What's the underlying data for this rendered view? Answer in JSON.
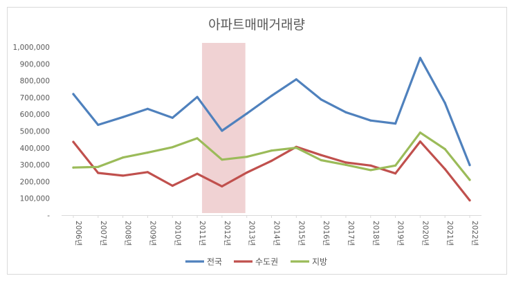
{
  "chart_data": {
    "type": "line",
    "title": "아파트매매거래량",
    "xlabel": "",
    "ylabel": "",
    "categories": [
      "2006년",
      "2007년",
      "2008년",
      "2009년",
      "2010년",
      "2011년",
      "2012년",
      "2013년",
      "2014년",
      "2015년",
      "2016년",
      "2017년",
      "2018년",
      "2019년",
      "2020년",
      "2021년",
      "2022년"
    ],
    "ylim": [
      0,
      1000000
    ],
    "yticks": [
      "-",
      "100,000",
      "200,000",
      "300,000",
      "400,000",
      "500,000",
      "600,000",
      "700,000",
      "800,000",
      "900,000",
      "1,000,000"
    ],
    "grid": false,
    "legend_position": "bottom",
    "highlight_range": [
      "2011년",
      "2012년"
    ],
    "highlight_color": "#f0d2d3",
    "series": [
      {
        "name": "전국",
        "color": "#4f81bd",
        "values": [
          720000,
          537000,
          583000,
          632000,
          579000,
          703000,
          502000,
          604000,
          710000,
          808000,
          688000,
          612000,
          563000,
          545000,
          935000,
          667000,
          298000
        ]
      },
      {
        "name": "수도권",
        "color": "#c0504d",
        "values": [
          436000,
          251000,
          235000,
          256000,
          175000,
          246000,
          171000,
          253000,
          323000,
          406000,
          357000,
          313000,
          295000,
          248000,
          438000,
          274000,
          88000
        ]
      },
      {
        "name": "지방",
        "color": "#9bbb59",
        "values": [
          283000,
          287000,
          343000,
          372000,
          404000,
          457000,
          330000,
          347000,
          384000,
          401000,
          327000,
          299000,
          268000,
          295000,
          491000,
          393000,
          210000
        ]
      }
    ]
  }
}
